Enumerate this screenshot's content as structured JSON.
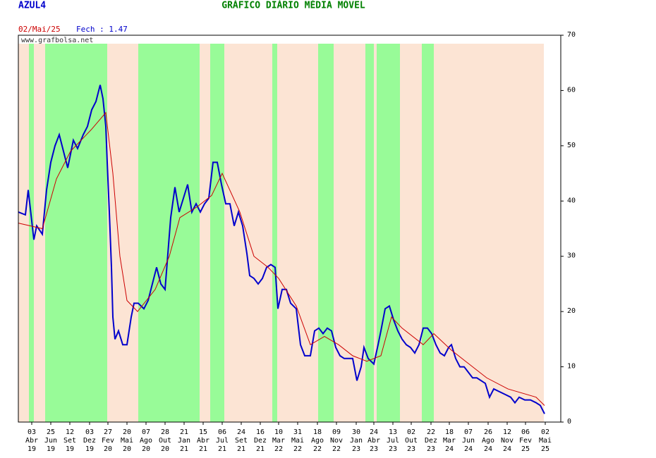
{
  "chart_data": {
    "type": "line",
    "ticker": "AZUL4",
    "title": "GRÁFICO DIÁRIO MÉDIA MÓVEL",
    "date": "02/Mai/25",
    "close": "Fech : 1.47",
    "watermark": "www.grafbolsa.net",
    "xlim": [
      0,
      1538
    ],
    "ylim": [
      0,
      70
    ],
    "yticks": [
      0,
      10,
      20,
      30,
      40,
      50,
      60,
      70
    ],
    "xticks": [
      {
        "value": 38,
        "label": "03 Abr 19"
      },
      {
        "value": 92,
        "label": "25 Jun 19"
      },
      {
        "value": 146,
        "label": "12 Set 19"
      },
      {
        "value": 202,
        "label": "03 Dez 19"
      },
      {
        "value": 254,
        "label": "27 Fev 20"
      },
      {
        "value": 308,
        "label": "20 Mai 20"
      },
      {
        "value": 362,
        "label": "07 Ago 20"
      },
      {
        "value": 416,
        "label": "28 Out 20"
      },
      {
        "value": 470,
        "label": "21 Jan 21"
      },
      {
        "value": 524,
        "label": "15 Abr 21"
      },
      {
        "value": 578,
        "label": "06 Jul 21"
      },
      {
        "value": 632,
        "label": "24 Set 21"
      },
      {
        "value": 686,
        "label": "16 Dez 21"
      },
      {
        "value": 738,
        "label": "10 Mar 22"
      },
      {
        "value": 792,
        "label": "31 Mai 22"
      },
      {
        "value": 848,
        "label": "18 Ago 22"
      },
      {
        "value": 902,
        "label": "09 Nov 22"
      },
      {
        "value": 958,
        "label": "30 Jan 23"
      },
      {
        "value": 1008,
        "label": "24 Abr 23"
      },
      {
        "value": 1062,
        "label": "13 Jul 23"
      },
      {
        "value": 1114,
        "label": "02 Out 23"
      },
      {
        "value": 1170,
        "label": "22 Dez 23"
      },
      {
        "value": 1222,
        "label": "18 Mar 24"
      },
      {
        "value": 1276,
        "label": "07 Jun 24"
      },
      {
        "value": 1332,
        "label": "26 Ago 24"
      },
      {
        "value": 1386,
        "label": "12 Nov 24"
      },
      {
        "value": 1438,
        "label": "06 Fev 25"
      },
      {
        "value": 1494,
        "label": "02 Mai 25"
      }
    ],
    "background": {
      "start": 0,
      "end": 1490,
      "color": "#fce4d4"
    },
    "bands_color": "#98fb98",
    "bands": [
      {
        "start": 30,
        "end": 44
      },
      {
        "start": 76,
        "end": 252
      },
      {
        "start": 340,
        "end": 514
      },
      {
        "start": 544,
        "end": 584
      },
      {
        "start": 720,
        "end": 734
      },
      {
        "start": 850,
        "end": 894
      },
      {
        "start": 984,
        "end": 1008
      },
      {
        "start": 1016,
        "end": 1082
      },
      {
        "start": 1144,
        "end": 1178
      }
    ],
    "series": [
      {
        "color": "#0000cc",
        "x": [
          0,
          20,
          28,
          44,
          52,
          68,
          80,
          92,
          104,
          116,
          128,
          140,
          156,
          168,
          184,
          196,
          208,
          220,
          232,
          240,
          248,
          252,
          258,
          264,
          268,
          274,
          284,
          296,
          308,
          320,
          328,
          340,
          356,
          368,
          380,
          392,
          404,
          416,
          424,
          432,
          444,
          456,
          468,
          480,
          492,
          504,
          516,
          528,
          540,
          552,
          564,
          576,
          588,
          600,
          612,
          624,
          636,
          648,
          656,
          668,
          680,
          692,
          704,
          716,
          728,
          736,
          748,
          760,
          772,
          788,
          800,
          812,
          828,
          840,
          852,
          864,
          876,
          888,
          900,
          912,
          924,
          936,
          948,
          960,
          972,
          980,
          992,
          1008,
          1020,
          1028,
          1040,
          1052,
          1064,
          1076,
          1088,
          1100,
          1112,
          1124,
          1136,
          1148,
          1160,
          1172,
          1184,
          1196,
          1208,
          1220,
          1228,
          1240,
          1252,
          1264,
          1276,
          1288,
          1300,
          1312,
          1324,
          1336,
          1348,
          1364,
          1380,
          1396,
          1408,
          1420,
          1436,
          1452,
          1468,
          1480,
          1492
        ],
        "values": [
          38,
          37.5,
          42,
          33,
          35.5,
          34,
          42,
          47,
          50,
          52,
          49,
          46,
          51,
          49.5,
          52,
          53.5,
          56.5,
          58,
          61,
          58.5,
          53.5,
          47,
          38,
          28,
          19,
          15,
          16.5,
          14,
          14,
          19,
          21.5,
          21.5,
          20.5,
          22,
          25,
          28,
          25,
          24,
          30.5,
          37,
          42.5,
          38,
          40.5,
          43,
          38,
          39.5,
          38,
          39.5,
          40.5,
          47,
          47,
          43,
          39.5,
          39.5,
          35.5,
          38,
          35.5,
          30.5,
          26.5,
          26,
          25,
          26,
          28,
          28.5,
          28,
          20.5,
          24,
          24,
          21.5,
          20.5,
          14,
          12,
          12,
          16.5,
          17,
          16,
          17,
          16.5,
          13.5,
          12,
          11.5,
          11.5,
          11.5,
          7.5,
          10,
          13.5,
          11.5,
          10.5,
          14,
          16.5,
          20.5,
          21,
          18.5,
          16.5,
          15,
          14,
          13.5,
          12.5,
          14,
          17,
          17,
          16,
          14,
          12.5,
          12,
          13.5,
          14,
          11.5,
          10,
          10,
          9,
          8,
          8,
          7.5,
          7,
          4.5,
          6,
          5.5,
          5,
          4.5,
          3.5,
          4.5,
          4,
          4,
          3.5,
          3,
          1.5
        ]
      },
      {
        "color": "#cc0000",
        "x": [
          0,
          68,
          108,
          148,
          208,
          248,
          268,
          288,
          308,
          338,
          388,
          428,
          458,
          508,
          548,
          578,
          628,
          668,
          708,
          738,
          788,
          828,
          868,
          908,
          948,
          988,
          1028,
          1058,
          1088,
          1148,
          1178,
          1228,
          1268,
          1328,
          1388,
          1468,
          1492
        ],
        "values": [
          36,
          35,
          44,
          49,
          53,
          56,
          45,
          30,
          22,
          20,
          24,
          30,
          37,
          39,
          41,
          45,
          38,
          30,
          28,
          26,
          21,
          14,
          15.5,
          14,
          12,
          11,
          12,
          19,
          17,
          14,
          16,
          13,
          11,
          8,
          6,
          4.5,
          3
        ]
      }
    ]
  }
}
